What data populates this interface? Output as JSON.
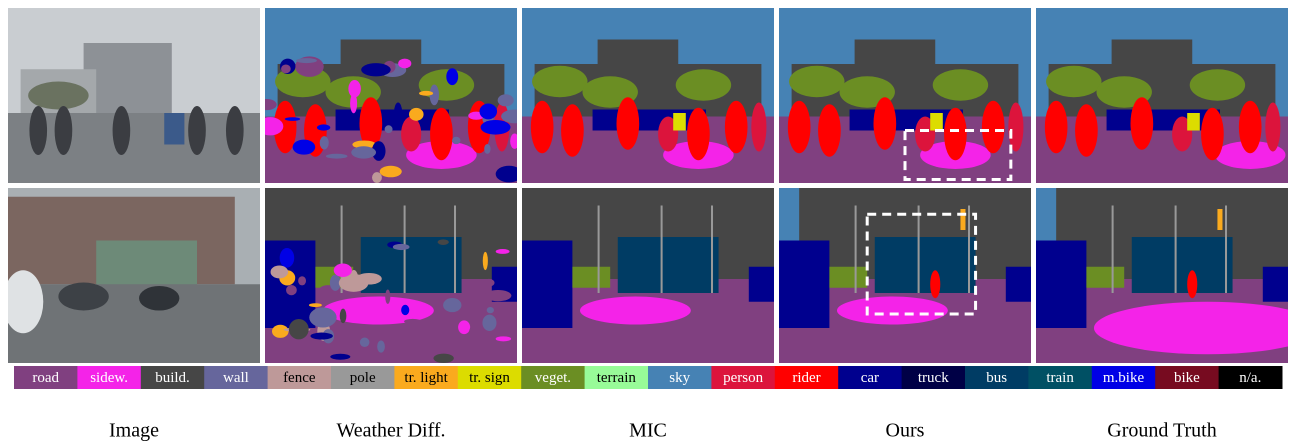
{
  "columns": [
    "Image",
    "Weather Diff.",
    "MIC",
    "Ours",
    "Ground Truth"
  ],
  "legend": [
    {
      "name": "road",
      "color": "#804080"
    },
    {
      "name": "sidew.",
      "color": "#f423e8"
    },
    {
      "name": "build.",
      "color": "#464646"
    },
    {
      "name": "wall",
      "color": "#66669c"
    },
    {
      "name": "fence",
      "color": "#be9999"
    },
    {
      "name": "pole",
      "color": "#999999"
    },
    {
      "name": "tr. light",
      "color": "#faaa1e"
    },
    {
      "name": "tr. sign",
      "color": "#dcdc00"
    },
    {
      "name": "veget.",
      "color": "#6b8e23"
    },
    {
      "name": "terrain",
      "color": "#98fb98"
    },
    {
      "name": "sky",
      "color": "#4682b4"
    },
    {
      "name": "person",
      "color": "#dc143c"
    },
    {
      "name": "rider",
      "color": "#ff0000"
    },
    {
      "name": "car",
      "color": "#00008e"
    },
    {
      "name": "truck",
      "color": "#000046"
    },
    {
      "name": "bus",
      "color": "#003c64"
    },
    {
      "name": "train",
      "color": "#005064"
    },
    {
      "name": "m.bike",
      "color": "#0000e6"
    },
    {
      "name": "bike",
      "color": "#770b20"
    },
    {
      "name": "n/a.",
      "color": "#000000"
    }
  ]
}
